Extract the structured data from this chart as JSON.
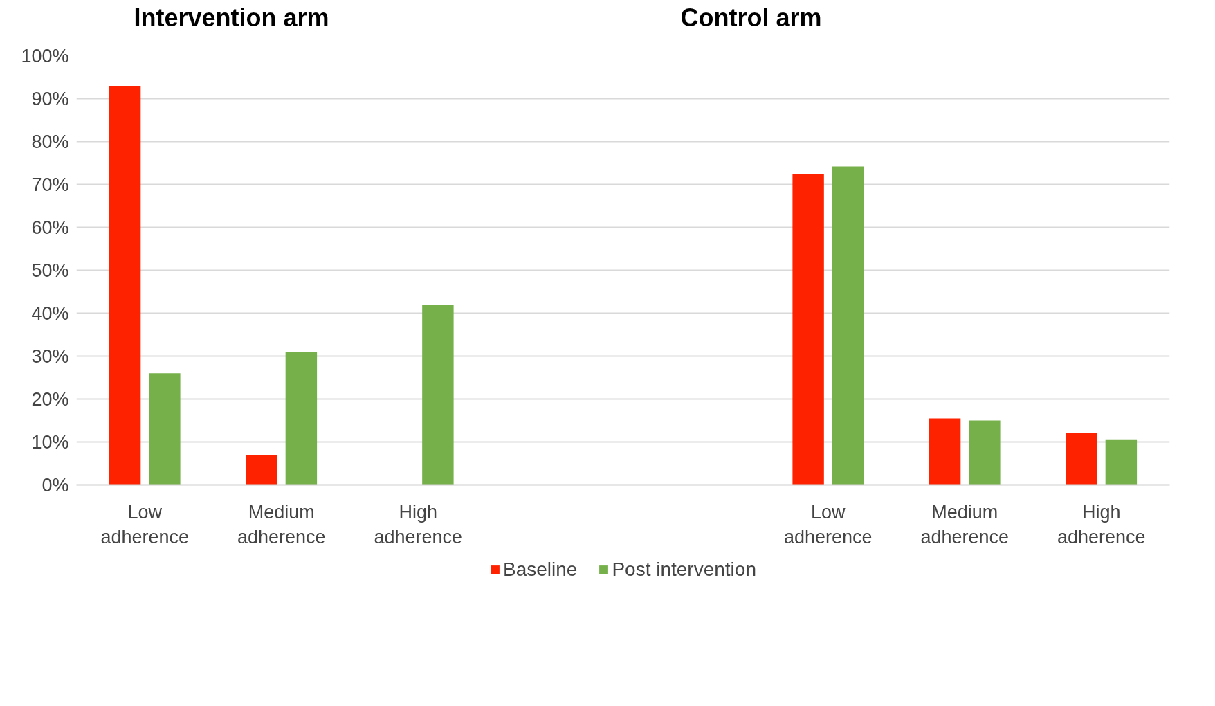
{
  "chart_data": {
    "type": "bar",
    "annotations": [
      "Intervention arm",
      "Control arm"
    ],
    "categories": [
      "Low adherence",
      "Medium adherence",
      "High adherence",
      null,
      null,
      "Low adherence",
      "Medium adherence",
      "High adherence"
    ],
    "series": [
      {
        "name": "Baseline",
        "color": "#ff2200",
        "values": [
          93,
          7,
          0,
          null,
          null,
          72.4,
          15.5,
          12
        ]
      },
      {
        "name": "Post intervention",
        "color": "#76b04a",
        "values": [
          26,
          31,
          42,
          null,
          null,
          74.2,
          15,
          10.6
        ]
      }
    ],
    "ylim": [
      0,
      100
    ],
    "yticks": [
      {
        "value": 0,
        "label": "0%"
      },
      {
        "value": 10,
        "label": "10%"
      },
      {
        "value": 20,
        "label": "20%"
      },
      {
        "value": 30,
        "label": "30%"
      },
      {
        "value": 40,
        "label": "40%"
      },
      {
        "value": 50,
        "label": "50%"
      },
      {
        "value": 60,
        "label": "60%"
      },
      {
        "value": 70,
        "label": "70%"
      },
      {
        "value": 80,
        "label": "80%"
      },
      {
        "value": 90,
        "label": "90%"
      },
      {
        "value": 100,
        "label": "100%"
      }
    ],
    "grid": "y",
    "legend": "bottom"
  }
}
